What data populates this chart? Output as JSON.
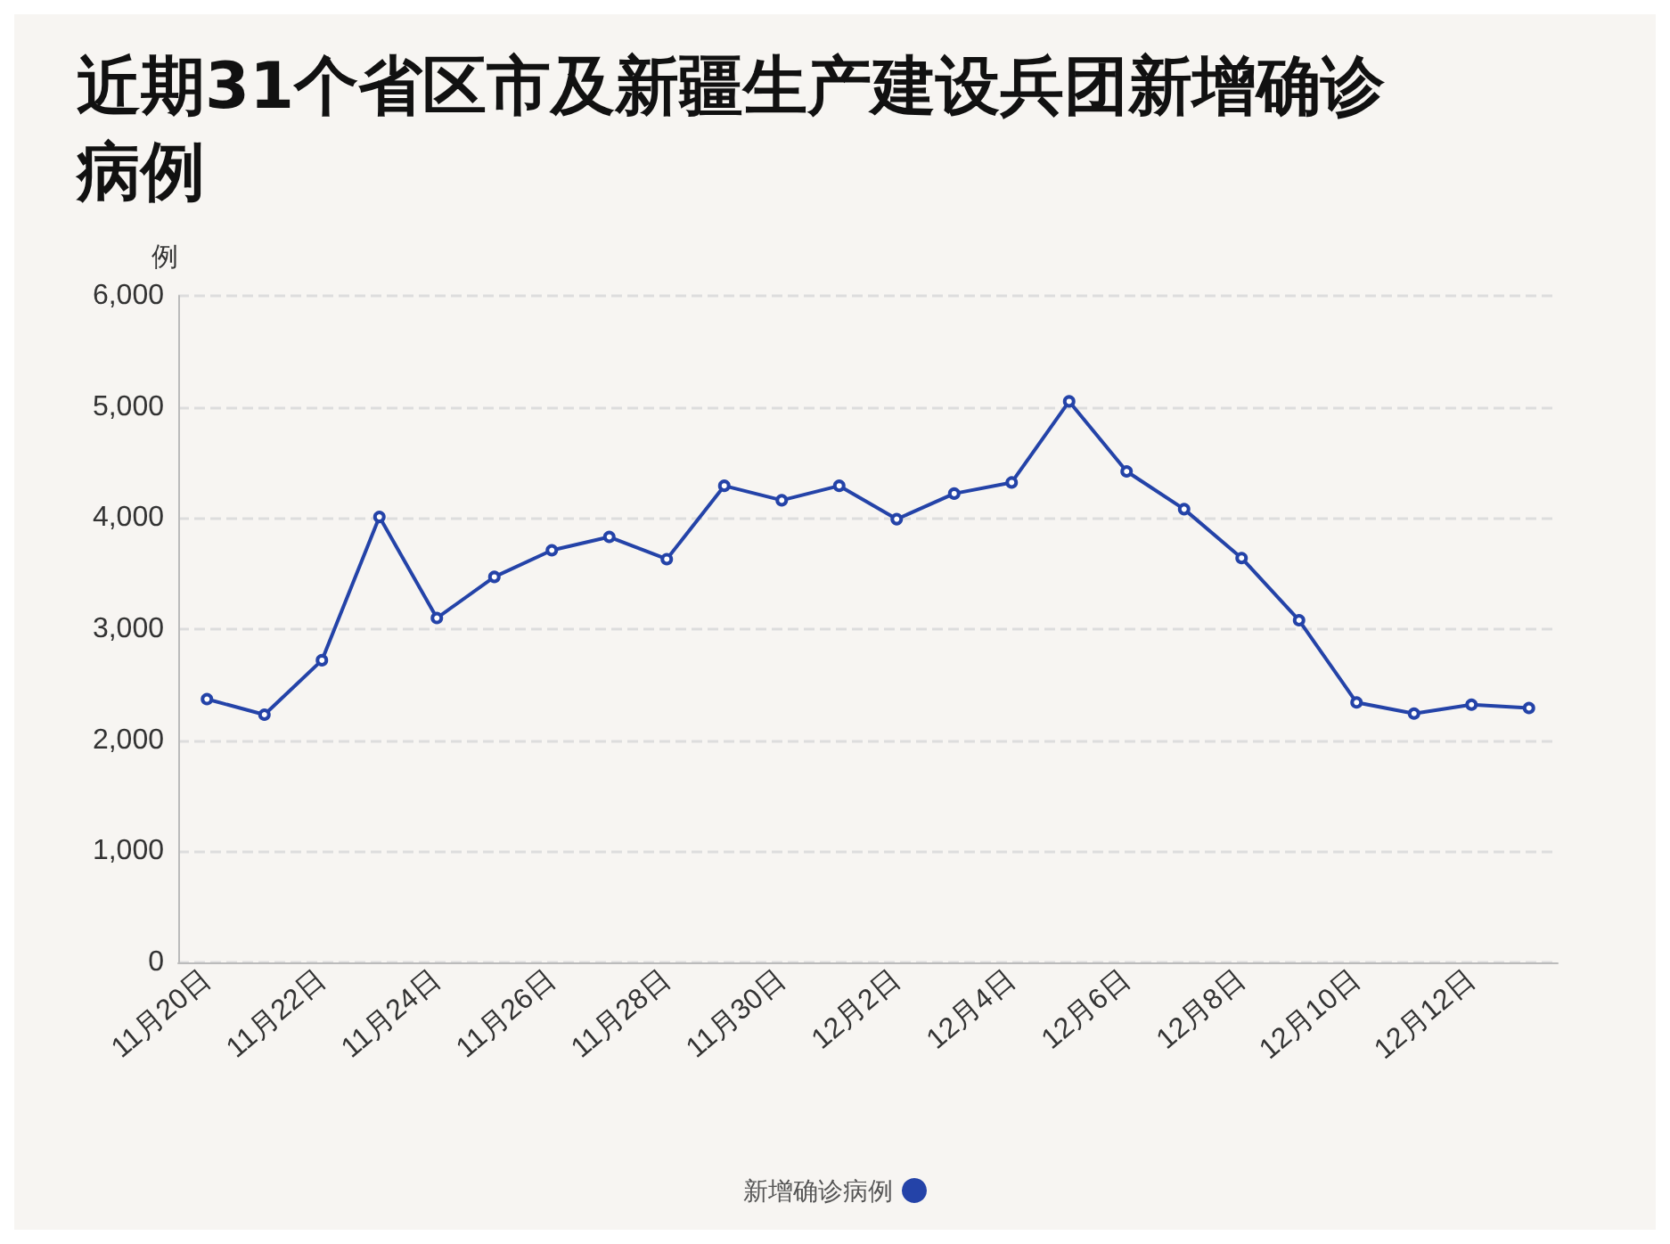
{
  "chart_data": {
    "type": "line",
    "title": "近期31个省区市及新疆生产建设兵团新增确诊病例",
    "ylabel": "例",
    "categories": [
      "11月20日",
      null,
      "11月22日",
      null,
      "11月24日",
      null,
      "11月26日",
      null,
      "11月28日",
      null,
      "11月30日",
      null,
      "12月2日",
      null,
      "12月4日",
      null,
      "12月6日",
      null,
      "12月8日",
      null,
      "12月10日",
      null,
      "12月12日",
      null
    ],
    "series": [
      {
        "name": "新增确诊病例",
        "color": "#2443a8",
        "values": [
          2370,
          2230,
          2720,
          4010,
          3100,
          3470,
          3710,
          3830,
          3630,
          4290,
          4160,
          4290,
          3990,
          4220,
          4320,
          5050,
          4420,
          4080,
          3640,
          3080,
          2340,
          2240,
          2320,
          2290
        ]
      }
    ],
    "ylim": [
      0,
      6000
    ],
    "yticks": [
      0,
      {
        "value": 1000,
        "label": "1,000"
      },
      {
        "value": 2000,
        "label": "2,000"
      },
      {
        "value": 3000,
        "label": "3,000"
      },
      {
        "value": 4000,
        "label": "4,000"
      },
      {
        "value": 5000,
        "label": "5,000"
      },
      {
        "value": 6000,
        "label": "6,000"
      }
    ],
    "grid": "y",
    "legend": "bottom",
    "marker": "circle",
    "line_style": "solid"
  }
}
